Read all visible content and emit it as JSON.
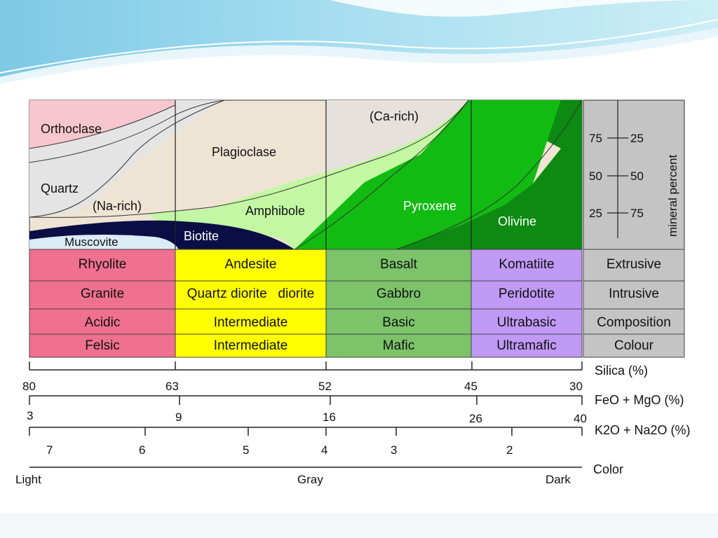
{
  "minerals": {
    "orthoclase": "Orthoclase",
    "quartz": "Quartz",
    "na_rich": "(Na-rich)",
    "plagioclase": "Plagioclase",
    "ca_rich": "(Ca-rich)",
    "muscovite": "Muscovite",
    "biotite": "Biotite",
    "amphibole": "Amphibole",
    "pyroxene": "Pyroxene",
    "olivine": "Olivine"
  },
  "mineral_percent": {
    "title": "mineral percent",
    "left": [
      "75",
      "50",
      "25"
    ],
    "right": [
      "25",
      "50",
      "75"
    ]
  },
  "table": {
    "rows": [
      [
        "Rhyolite",
        "Andesite",
        "Basalt",
        "Komatiite",
        "Extrusive"
      ],
      [
        "Granite",
        "Quartz diorite   diorite",
        "Gabbro",
        "Peridotite",
        "Intrusive"
      ],
      [
        "Acidic",
        "Intermediate",
        "Basic",
        "Ultrabasic",
        "Composition"
      ],
      [
        "Felsic",
        "Intermediate",
        "Mafic",
        "Ultramafic",
        "Colour"
      ]
    ]
  },
  "scales": {
    "silica": {
      "title": "Silica (%)",
      "ticks": [
        "80",
        "63",
        "52",
        "45",
        "30"
      ]
    },
    "feo": {
      "title": "FeO + MgO (%)",
      "ticks": [
        "3",
        "9",
        "16",
        "26",
        "40"
      ]
    },
    "k2o": {
      "title": "K2O + Na2O (%)",
      "ticks": [
        "7",
        "6",
        "5",
        "4",
        "3",
        "2"
      ]
    },
    "color": {
      "title": "Color",
      "ticks": [
        "Light",
        "Gray",
        "Dark"
      ]
    }
  },
  "colors": {
    "felsic": "#f07090",
    "intermediate": "#ffff00",
    "mafic": "#7cc36a",
    "ultramafic": "#c09af6",
    "legend": "#c4c4c4",
    "orthoclase": "#f7c6cf",
    "quartz": "#e4e4e4",
    "plagioclase": "#eee4d4",
    "biotite": "#0b0e45",
    "amphibole": "#c3f7a3",
    "pyroxene": "#11bb11",
    "olivine": "#0c8a12"
  }
}
